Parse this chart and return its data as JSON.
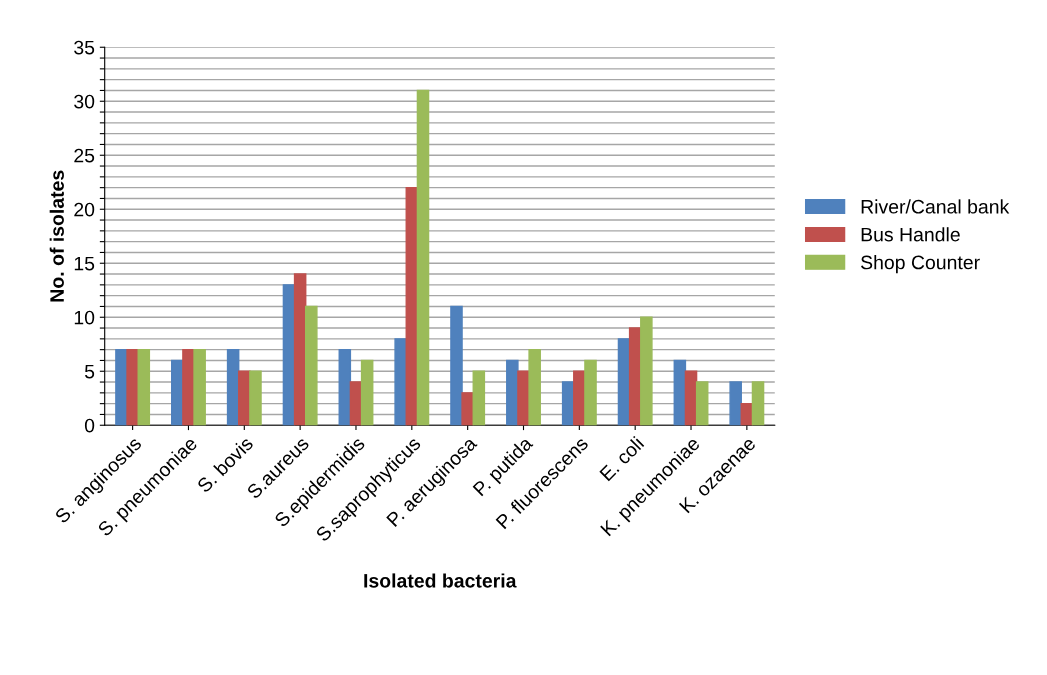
{
  "chart_data": {
    "type": "bar",
    "xlabel": "Isolated bacteria",
    "ylabel": "No. of isolates",
    "categories": [
      "S. anginosus",
      "S. pneumoniae",
      "S. bovis",
      "S.aureus",
      "S.epidermidis",
      "S.saprophyticus",
      "P. aeruginosa",
      "P. putida",
      "P. fluorescens",
      "E. coli",
      "K. pneumoniae",
      "K. ozaenae"
    ],
    "series": [
      {
        "name": "River/Canal bank",
        "color": "#4f81bd",
        "values": [
          7,
          6,
          7,
          13,
          7,
          8,
          11,
          6,
          4,
          8,
          6,
          4
        ]
      },
      {
        "name": "Bus Handle",
        "color": "#c0504d",
        "values": [
          7,
          7,
          5,
          14,
          4,
          22,
          3,
          5,
          5,
          9,
          5,
          2
        ]
      },
      {
        "name": "Shop Counter",
        "color": "#9bbb59",
        "values": [
          7,
          7,
          5,
          11,
          6,
          31,
          5,
          7,
          6,
          10,
          4,
          4
        ]
      }
    ],
    "ylim": [
      0,
      35
    ],
    "yticks": [
      0,
      {
        "value": 1,
        "label": null
      },
      {
        "value": 2,
        "label": null
      },
      {
        "value": 3,
        "label": null
      },
      {
        "value": 4,
        "label": null
      },
      5,
      {
        "value": 6,
        "label": null
      },
      {
        "value": 7,
        "label": null
      },
      {
        "value": 8,
        "label": null
      },
      {
        "value": 9,
        "label": null
      },
      10,
      {
        "value": 11,
        "label": null
      },
      {
        "value": 12,
        "label": null
      },
      {
        "value": 13,
        "label": null
      },
      {
        "value": 14,
        "label": null
      },
      15,
      {
        "value": 16,
        "label": null
      },
      {
        "value": 17,
        "label": null
      },
      {
        "value": 18,
        "label": null
      },
      {
        "value": 19,
        "label": null
      },
      20,
      {
        "value": 21,
        "label": null
      },
      {
        "value": 22,
        "label": null
      },
      {
        "value": 23,
        "label": null
      },
      {
        "value": 24,
        "label": null
      },
      25,
      {
        "value": 26,
        "label": null
      },
      {
        "value": 27,
        "label": null
      },
      {
        "value": 28,
        "label": null
      },
      {
        "value": 29,
        "label": null
      },
      30,
      {
        "value": 31,
        "label": null
      },
      {
        "value": 32,
        "label": null
      },
      {
        "value": 33,
        "label": null
      },
      {
        "value": 34,
        "label": null
      },
      35
    ],
    "grid": "y",
    "legend": "right"
  }
}
